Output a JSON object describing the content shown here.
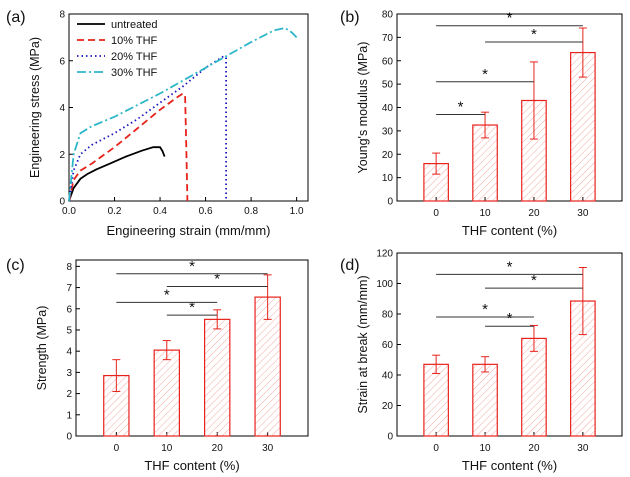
{
  "panel_labels": [
    "(a)",
    "(b)",
    "(c)",
    "(d)"
  ],
  "chart_data": [
    {
      "panel": "(a)",
      "type": "line",
      "title": "",
      "xlabel": "Engineering strain (mm/mm)",
      "ylabel": "Engineering stress (MPa)",
      "xlim": [
        0,
        1.05
      ],
      "ylim": [
        0,
        8
      ],
      "xticks": [
        "0.0",
        "0.2",
        "0.4",
        "0.6",
        "0.8",
        "1.0"
      ],
      "yticks": [
        "0",
        "2",
        "4",
        "6",
        "8"
      ],
      "legend_position": "top-left",
      "series": [
        {
          "name": "untreated",
          "color": "#000000",
          "dash": "solid",
          "x": [
            0,
            0.02,
            0.05,
            0.08,
            0.12,
            0.18,
            0.25,
            0.32,
            0.37,
            0.4,
            0.41,
            0.42
          ],
          "y": [
            0,
            0.55,
            0.95,
            1.15,
            1.35,
            1.6,
            1.9,
            2.15,
            2.3,
            2.3,
            2.15,
            1.9
          ]
        },
        {
          "name": "10% THF",
          "color": "#e8221b",
          "dash": "dashed",
          "x": [
            0,
            0.02,
            0.05,
            0.1,
            0.2,
            0.3,
            0.4,
            0.47,
            0.5,
            0.51,
            0.515,
            0.52
          ],
          "y": [
            0,
            0.9,
            1.3,
            1.6,
            2.3,
            3.1,
            3.9,
            4.4,
            4.6,
            4.5,
            2.5,
            0
          ]
        },
        {
          "name": "20% THF",
          "color": "#1a16c2",
          "dash": "dotted",
          "x": [
            0,
            0.02,
            0.05,
            0.1,
            0.2,
            0.3,
            0.4,
            0.5,
            0.6,
            0.68,
            0.69,
            0.69
          ],
          "y": [
            0,
            1.3,
            2.0,
            2.4,
            2.9,
            3.5,
            4.2,
            4.9,
            5.7,
            6.2,
            6.1,
            0
          ]
        },
        {
          "name": "30% THF",
          "color": "#2cb7c9",
          "dash": "dashdot",
          "x": [
            0,
            0.02,
            0.05,
            0.1,
            0.2,
            0.4,
            0.6,
            0.8,
            0.9,
            0.95,
            0.98,
            1.0
          ],
          "y": [
            0,
            2.0,
            2.9,
            3.2,
            3.6,
            4.6,
            5.7,
            6.8,
            7.3,
            7.4,
            7.2,
            7.0
          ]
        }
      ]
    },
    {
      "panel": "(b)",
      "type": "bar",
      "title": "",
      "xlabel": "THF content (%)",
      "ylabel": "Young's modulus (MPa)",
      "categories": [
        "0",
        "10",
        "20",
        "30"
      ],
      "values": [
        16,
        32.5,
        43,
        63.5
      ],
      "errors": [
        4.5,
        5.5,
        16.5,
        10.5
      ],
      "ylim": [
        0,
        80
      ],
      "yticks": [
        "0",
        "10",
        "20",
        "30",
        "40",
        "50",
        "60",
        "70",
        "80"
      ],
      "bar_color": "#e8221b",
      "significance": [
        {
          "from": 0,
          "to": 1,
          "y": 37,
          "mark": "*"
        },
        {
          "from": 0,
          "to": 2,
          "y": 51,
          "mark": "*"
        },
        {
          "from": 1,
          "to": 3,
          "y": 68,
          "mark": "*"
        },
        {
          "from": 0,
          "to": 3,
          "y": 75,
          "mark": "*"
        }
      ]
    },
    {
      "panel": "(c)",
      "type": "bar",
      "title": "",
      "xlabel": "THF content (%)",
      "ylabel": "Strength (MPa)",
      "categories": [
        "0",
        "10",
        "20",
        "30"
      ],
      "values": [
        2.85,
        4.05,
        5.5,
        6.55
      ],
      "errors": [
        0.75,
        0.45,
        0.45,
        1.05
      ],
      "ylim": [
        0,
        8.3
      ],
      "yticks": [
        "0",
        "1",
        "2",
        "3",
        "4",
        "5",
        "6",
        "7",
        "8"
      ],
      "bar_color": "#e8221b",
      "significance": [
        {
          "from": 0,
          "to": 2,
          "y": 6.3,
          "mark": "*"
        },
        {
          "from": 1,
          "to": 2,
          "y": 5.7,
          "mark": "*"
        },
        {
          "from": 1,
          "to": 3,
          "y": 7.05,
          "mark": "*"
        },
        {
          "from": 0,
          "to": 3,
          "y": 7.65,
          "mark": "*"
        }
      ]
    },
    {
      "panel": "(d)",
      "type": "bar",
      "title": "",
      "xlabel": "THF content (%)",
      "ylabel": "Strain at break (mm/mm)",
      "categories": [
        "0",
        "10",
        "20",
        "30"
      ],
      "values": [
        47,
        47,
        64,
        88.5
      ],
      "errors": [
        6,
        5,
        8.5,
        22
      ],
      "ylim": [
        0,
        120
      ],
      "yticks": [
        "0",
        "20",
        "40",
        "60",
        "80",
        "100",
        "120"
      ],
      "bar_color": "#e8221b",
      "significance": [
        {
          "from": 0,
          "to": 2,
          "y": 78,
          "mark": "*"
        },
        {
          "from": 1,
          "to": 2,
          "y": 72,
          "mark": "*"
        },
        {
          "from": 1,
          "to": 3,
          "y": 97,
          "mark": "*"
        },
        {
          "from": 0,
          "to": 3,
          "y": 106,
          "mark": "*"
        }
      ]
    }
  ]
}
